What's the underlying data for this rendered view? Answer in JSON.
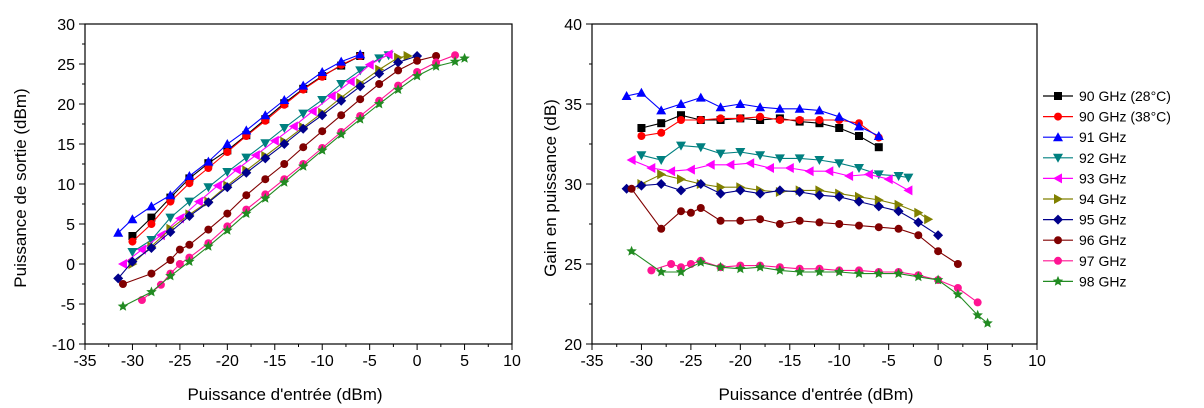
{
  "chart_data": [
    {
      "type": "line",
      "title": "",
      "xlabel": "Puissance d'entrée (dBm)",
      "ylabel": "Puissance de sortie (dBm)",
      "xlim": [
        -35,
        10
      ],
      "ylim": [
        -10,
        30
      ],
      "xticks": [
        -35,
        -30,
        -25,
        -20,
        -15,
        -10,
        -5,
        0,
        5,
        10
      ],
      "yticks": [
        -10,
        -5,
        0,
        5,
        10,
        15,
        20,
        25,
        30
      ],
      "grid": false,
      "legend": "none",
      "series": [
        {
          "color": "#000000",
          "marker": "square",
          "x": [
            -30,
            -28,
            -26,
            -24,
            -22,
            -20,
            -18,
            -16,
            -14,
            -12,
            -10,
            -8,
            -6
          ],
          "y": [
            3.5,
            5.8,
            8.3,
            10.7,
            12.6,
            14.2,
            16.1,
            18.1,
            20.1,
            21.9,
            23.5,
            24.8,
            26.0
          ]
        },
        {
          "color": "#ff0000",
          "marker": "circle",
          "x": [
            -30,
            -28,
            -26,
            -24,
            -22,
            -20,
            -18,
            -16,
            -14,
            -12,
            -10,
            -8,
            -6
          ],
          "y": [
            2.8,
            5.0,
            7.8,
            10.1,
            12.0,
            14.0,
            16.0,
            17.9,
            19.9,
            21.8,
            23.4,
            24.9,
            26.0
          ]
        },
        {
          "color": "#0000ff",
          "marker": "triangle-up",
          "x": [
            -31.5,
            -30,
            -28,
            -26,
            -24,
            -22,
            -20,
            -18,
            -16,
            -14,
            -12,
            -10,
            -8,
            -6
          ],
          "y": [
            3.9,
            5.6,
            7.2,
            8.6,
            11.0,
            12.8,
            15.0,
            16.7,
            18.6,
            20.5,
            22.3,
            24.0,
            25.3,
            26.2
          ]
        },
        {
          "color": "#008080",
          "marker": "triangle-down",
          "x": [
            -30,
            -28,
            -26,
            -24,
            -22,
            -20,
            -18,
            -16,
            -14,
            -12,
            -10,
            -8,
            -6,
            -4,
            -3
          ],
          "y": [
            1.5,
            3.0,
            5.8,
            7.8,
            9.6,
            11.5,
            13.3,
            15.1,
            17.0,
            18.8,
            20.5,
            22.5,
            24.2,
            25.7,
            26.1
          ]
        },
        {
          "color": "#ff00ff",
          "marker": "triangle-left",
          "x": [
            -31,
            -29,
            -27,
            -25,
            -23,
            -21,
            -19,
            -17,
            -15,
            -13,
            -11,
            -9,
            -7,
            -5,
            -3
          ],
          "y": [
            0,
            1.8,
            3.6,
            5.7,
            7.8,
            9.8,
            11.8,
            13.6,
            15.4,
            17.2,
            19.1,
            21.0,
            22.8,
            24.9,
            26.2
          ]
        },
        {
          "color": "#808000",
          "marker": "triangle-right",
          "x": [
            -30,
            -28,
            -26,
            -24,
            -22,
            -20,
            -18,
            -16,
            -14,
            -12,
            -10,
            -8,
            -6,
            -4,
            -2,
            -1
          ],
          "y": [
            0,
            2.2,
            4.4,
            6.2,
            7.8,
            9.8,
            11.7,
            13.5,
            15.3,
            17.1,
            18.9,
            20.8,
            22.6,
            24.3,
            25.8,
            26.0
          ]
        },
        {
          "color": "#00008b",
          "marker": "diamond",
          "x": [
            -31.5,
            -30,
            -28,
            -26,
            -24,
            -22,
            -20,
            -18,
            -16,
            -14,
            -12,
            -10,
            -8,
            -6,
            -4,
            -2,
            0
          ],
          "y": [
            -1.8,
            0.3,
            2.0,
            4.0,
            6.0,
            7.7,
            9.6,
            11.4,
            13.2,
            15.0,
            16.9,
            18.6,
            20.4,
            22.2,
            23.8,
            25.2,
            26.0
          ]
        },
        {
          "color": "#800000",
          "marker": "circle",
          "x": [
            -31,
            -28,
            -26,
            -25,
            -24,
            -22,
            -20,
            -18,
            -16,
            -14,
            -12,
            -10,
            -8,
            -6,
            -4,
            -2,
            0,
            2
          ],
          "y": [
            -2.5,
            -1.2,
            0.5,
            1.8,
            2.4,
            4.3,
            6.3,
            8.6,
            10.6,
            12.5,
            14.6,
            16.6,
            18.6,
            20.6,
            22.5,
            24.2,
            25.4,
            26.0
          ]
        },
        {
          "color": "#ff1493",
          "marker": "circle",
          "x": [
            -29,
            -27,
            -26,
            -25,
            -24,
            -22,
            -20,
            -18,
            -16,
            -14,
            -12,
            -10,
            -8,
            -6,
            -4,
            -2,
            0,
            2,
            4
          ],
          "y": [
            -4.5,
            -2.6,
            -1.2,
            0,
            0.8,
            2.6,
            4.7,
            6.8,
            8.7,
            10.6,
            12.5,
            14.5,
            16.5,
            18.5,
            20.4,
            22.3,
            24.0,
            25.2,
            26.1
          ]
        },
        {
          "color": "#228b22",
          "marker": "star",
          "x": [
            -31,
            -28,
            -26,
            -24,
            -22,
            -20,
            -18,
            -16,
            -14,
            -12,
            -10,
            -8,
            -6,
            -4,
            -2,
            0,
            2,
            4,
            5
          ],
          "y": [
            -5.3,
            -3.5,
            -1.5,
            0.3,
            2.2,
            4.2,
            6.3,
            8.2,
            10.2,
            12.2,
            14.2,
            16.2,
            18.1,
            20.0,
            21.8,
            23.5,
            24.7,
            25.3,
            25.7
          ]
        }
      ]
    },
    {
      "type": "line",
      "title": "",
      "xlabel": "Puissance d'entrée (dBm)",
      "ylabel": "Gain en puissance (dB)",
      "xlim": [
        -35,
        10
      ],
      "ylim": [
        20,
        40
      ],
      "xticks": [
        -35,
        -30,
        -25,
        -20,
        -15,
        -10,
        -5,
        0,
        5,
        10
      ],
      "yticks": [
        20,
        25,
        30,
        35,
        40
      ],
      "grid": false,
      "legend": "right",
      "series": [
        {
          "name": "90 GHz (28°C)",
          "color": "#000000",
          "marker": "square",
          "x": [
            -30,
            -28,
            -26,
            -24,
            -22,
            -20,
            -18,
            -16,
            -14,
            -12,
            -10,
            -8,
            -6
          ],
          "y": [
            33.5,
            33.8,
            34.3,
            34.0,
            34.0,
            34.1,
            34.0,
            34.1,
            33.9,
            33.8,
            33.5,
            33.0,
            32.3
          ]
        },
        {
          "name": "90 GHz (38°C)",
          "color": "#ff0000",
          "marker": "circle",
          "x": [
            -30,
            -28,
            -26,
            -24,
            -22,
            -20,
            -18,
            -16,
            -14,
            -12,
            -10,
            -8,
            -6
          ],
          "y": [
            33.0,
            33.2,
            34.0,
            34.0,
            34.1,
            34.1,
            34.2,
            34.0,
            34.0,
            34.0,
            34.0,
            33.8,
            32.9
          ]
        },
        {
          "name": "91 GHz",
          "color": "#0000ff",
          "marker": "triangle-up",
          "x": [
            -31.5,
            -30,
            -28,
            -26,
            -24,
            -22,
            -20,
            -18,
            -16,
            -14,
            -12,
            -10,
            -8,
            -6
          ],
          "y": [
            35.5,
            35.7,
            34.6,
            35.0,
            35.4,
            34.8,
            35.0,
            34.8,
            34.7,
            34.7,
            34.6,
            34.2,
            33.6,
            33.0
          ]
        },
        {
          "name": "92 GHz",
          "color": "#008080",
          "marker": "triangle-down",
          "x": [
            -30,
            -28,
            -26,
            -24,
            -22,
            -20,
            -18,
            -16,
            -14,
            -12,
            -10,
            -8,
            -6,
            -4,
            -3
          ],
          "y": [
            31.8,
            31.5,
            32.4,
            32.3,
            31.9,
            32.0,
            31.8,
            31.6,
            31.6,
            31.5,
            31.3,
            31.0,
            30.6,
            30.5,
            30.4
          ]
        },
        {
          "name": "93 GHz",
          "color": "#ff00ff",
          "marker": "triangle-left",
          "x": [
            -31,
            -29,
            -27,
            -25,
            -23,
            -21,
            -19,
            -17,
            -15,
            -13,
            -11,
            -9,
            -7,
            -5,
            -3
          ],
          "y": [
            31.5,
            31.0,
            30.8,
            30.9,
            31.2,
            31.2,
            31.3,
            31.0,
            31.0,
            30.8,
            30.8,
            30.5,
            30.6,
            30.3,
            29.6
          ]
        },
        {
          "name": "94 GHz",
          "color": "#808000",
          "marker": "triangle-right",
          "x": [
            -30,
            -28,
            -26,
            -24,
            -22,
            -20,
            -18,
            -16,
            -14,
            -12,
            -10,
            -8,
            -6,
            -4,
            -2,
            -1
          ],
          "y": [
            30.0,
            30.6,
            30.3,
            30.0,
            29.8,
            29.8,
            29.6,
            29.5,
            29.6,
            29.6,
            29.4,
            29.2,
            29.0,
            28.7,
            28.2,
            27.8
          ]
        },
        {
          "name": "95 GHz",
          "color": "#00008b",
          "marker": "diamond",
          "x": [
            -31.5,
            -30,
            -28,
            -26,
            -24,
            -22,
            -20,
            -18,
            -16,
            -14,
            -12,
            -10,
            -8,
            -6,
            -4,
            -2,
            0
          ],
          "y": [
            29.7,
            29.9,
            30.0,
            29.6,
            30.0,
            29.4,
            29.6,
            29.4,
            29.6,
            29.5,
            29.3,
            29.2,
            28.9,
            28.6,
            28.3,
            27.6,
            26.8
          ]
        },
        {
          "name": "96 GHz",
          "color": "#800000",
          "marker": "circle",
          "x": [
            -31,
            -28,
            -26,
            -25,
            -24,
            -22,
            -20,
            -18,
            -16,
            -14,
            -12,
            -10,
            -8,
            -6,
            -4,
            -2,
            0,
            2
          ],
          "y": [
            29.7,
            27.2,
            28.3,
            28.2,
            28.5,
            27.7,
            27.7,
            27.8,
            27.5,
            27.7,
            27.6,
            27.5,
            27.4,
            27.3,
            27.2,
            26.8,
            25.8,
            25.0
          ]
        },
        {
          "name": "97 GHz",
          "color": "#ff1493",
          "marker": "circle",
          "x": [
            -29,
            -27,
            -26,
            -25,
            -24,
            -22,
            -20,
            -18,
            -16,
            -14,
            -12,
            -10,
            -8,
            -6,
            -4,
            -2,
            0,
            2,
            4
          ],
          "y": [
            24.6,
            25.0,
            24.8,
            25.0,
            25.2,
            24.8,
            24.9,
            24.9,
            24.8,
            24.7,
            24.7,
            24.6,
            24.6,
            24.5,
            24.5,
            24.3,
            24.0,
            23.5,
            22.6
          ]
        },
        {
          "name": "98 GHz",
          "color": "#228b22",
          "marker": "star",
          "x": [
            -31,
            -28,
            -26,
            -24,
            -22,
            -20,
            -18,
            -16,
            -14,
            -12,
            -10,
            -8,
            -6,
            -4,
            -2,
            0,
            2,
            4,
            5
          ],
          "y": [
            25.8,
            24.5,
            24.5,
            25.1,
            24.8,
            24.7,
            24.8,
            24.6,
            24.5,
            24.5,
            24.5,
            24.4,
            24.4,
            24.4,
            24.2,
            24.0,
            23.1,
            21.8,
            21.3
          ]
        }
      ]
    }
  ]
}
